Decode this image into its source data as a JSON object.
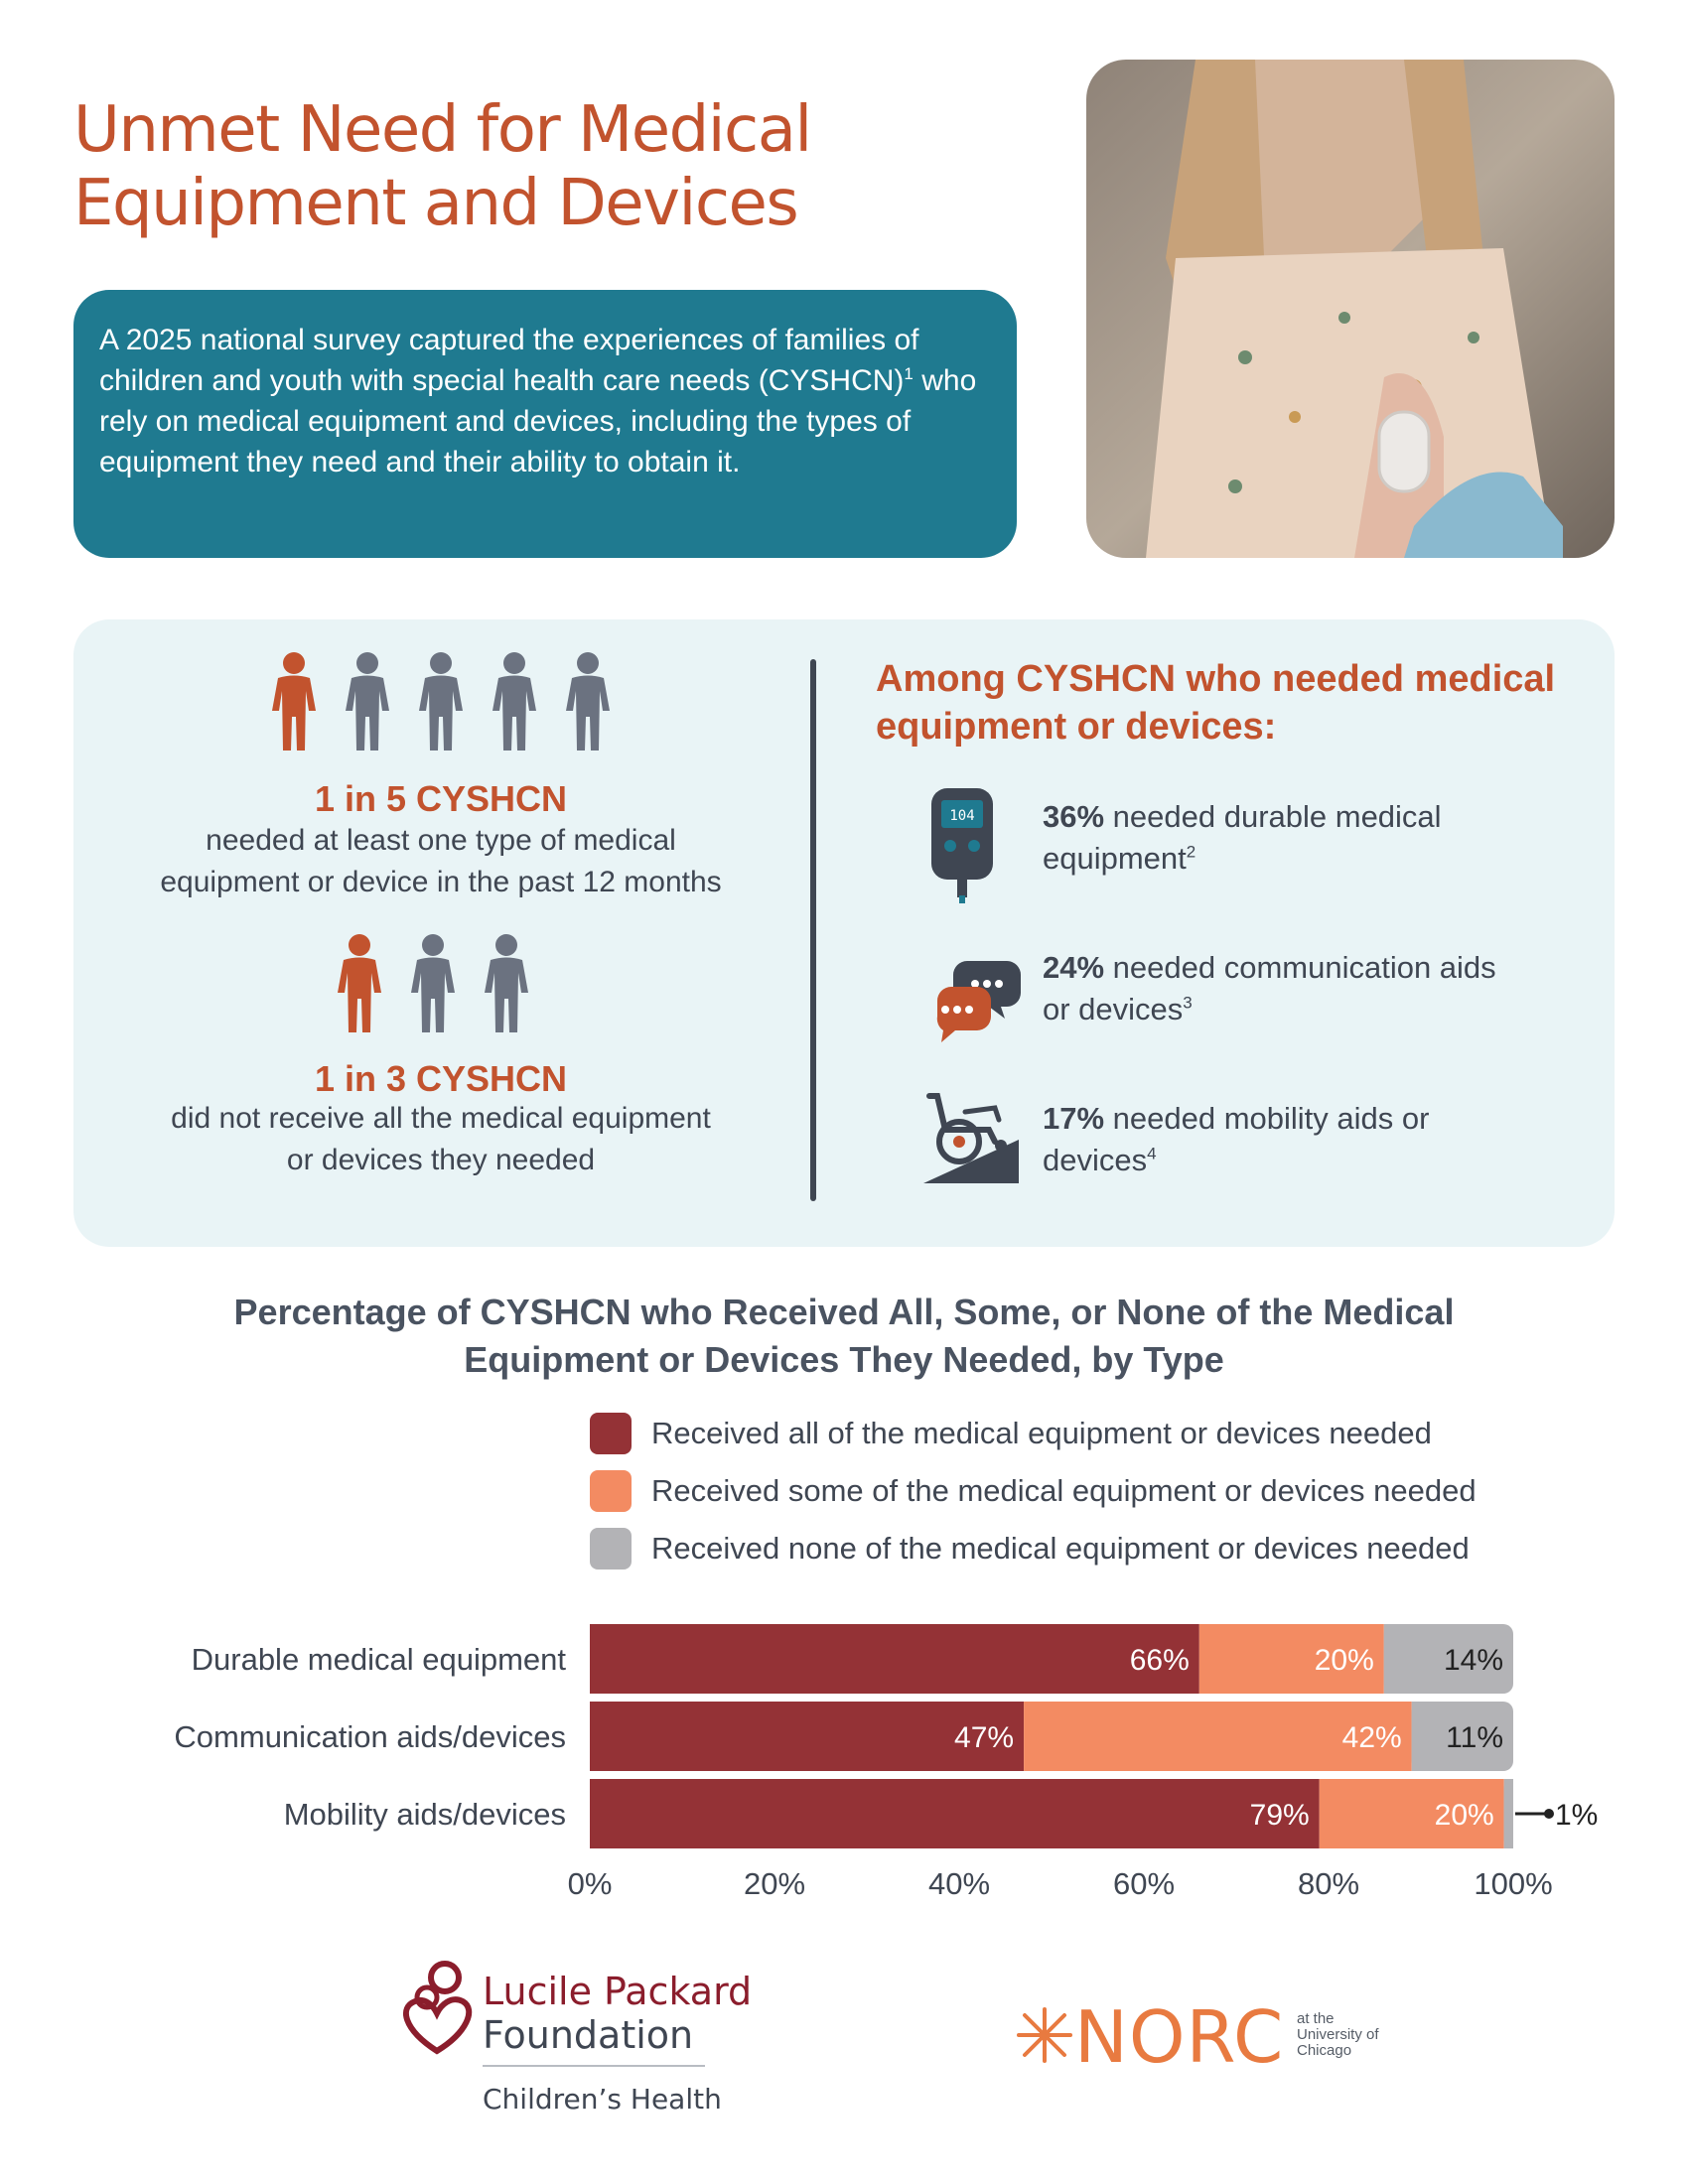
{
  "header": {
    "title": "Unmet Need for Medical Equipment and Devices",
    "intro": "A 2025 national survey captured the experiences of families of children and youth with special health care needs (CYSHCN)",
    "intro_sup": "1",
    "intro_rest": " who rely on medical equipment and devices, including the types of equipment they need and their ability to obtain it."
  },
  "stats": {
    "stat1": {
      "headline": "1 in 5 CYSHCN",
      "desc_line1": "needed at least one type of medical",
      "desc_line2": "equipment or device in the past 12 months",
      "highlighted": 1,
      "total": 5
    },
    "stat2": {
      "headline": "1 in 3 CYSHCN",
      "desc_line1": "did not receive all the medical equipment",
      "desc_line2": "or devices they needed",
      "highlighted": 1,
      "total": 3
    }
  },
  "among": {
    "heading": "Among CYSHCN who needed medical equipment or devices:",
    "items": [
      {
        "icon": "glucose-meter-icon",
        "pct": "36%",
        "text_line1": " needed durable medical",
        "text_line2": "equipment",
        "sup": "2"
      },
      {
        "icon": "speech-bubbles-icon",
        "pct": "24%",
        "text_line1": " needed communication aids",
        "text_line2": "or devices",
        "sup": "3"
      },
      {
        "icon": "wheelchair-ramp-icon",
        "pct": "17%",
        "text_line1": " needed mobility aids or",
        "text_line2": "devices",
        "sup": "4"
      }
    ],
    "meter_display": "104"
  },
  "chart_data": {
    "type": "bar",
    "orientation": "horizontal",
    "stacked": true,
    "title": "Percentage of CYSHCN who Received All, Some, or None of the Medical Equipment or Devices They Needed, by Type",
    "categories": [
      "Durable medical equipment",
      "Communication aids/devices",
      "Mobility aids/devices"
    ],
    "series": [
      {
        "name": "Received all of the medical equipment or devices needed",
        "values": [
          66,
          47,
          79
        ],
        "color": "#943236"
      },
      {
        "name": "Received some of the medical equipment or devices needed",
        "values": [
          20,
          42,
          20
        ],
        "color": "#f38b62"
      },
      {
        "name": "Received none of the medical equipment or devices needed",
        "values": [
          14,
          11,
          1
        ],
        "color": "#b3b3b6"
      }
    ],
    "labels": [
      [
        "66%",
        "20%",
        "14%"
      ],
      [
        "47%",
        "42%",
        "11%"
      ],
      [
        "79%",
        "20%",
        "1%"
      ]
    ],
    "xlim": [
      0,
      100
    ],
    "xticks": [
      "0%",
      "20%",
      "40%",
      "60%",
      "80%",
      "100%"
    ],
    "legend_position": "top"
  },
  "logos": {
    "lp_line1": "Lucile Packard",
    "lp_line2": "Foundation",
    "lp_sub": "Children’s Health",
    "norc": "NORC",
    "norc_small_1": "at the",
    "norc_small_2": "University of",
    "norc_small_3": "Chicago"
  },
  "colors": {
    "accent": "#c2532e",
    "teal": "#1f7a90",
    "panel": "#e9f4f6",
    "person_gray": "#6b7280"
  }
}
